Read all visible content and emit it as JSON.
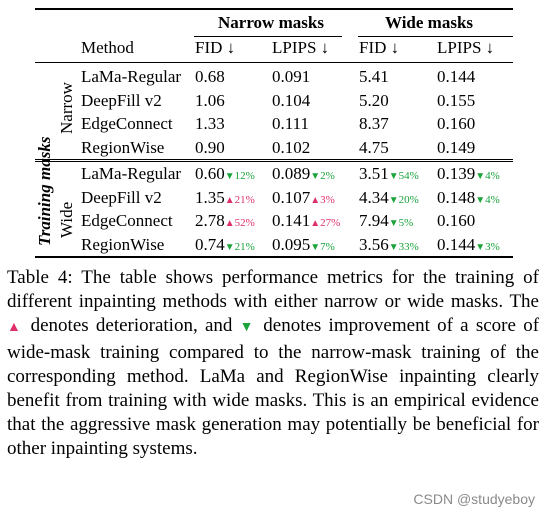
{
  "header": {
    "group_narrow": "Narrow masks",
    "group_wide": "Wide masks",
    "method": "Method",
    "fid": "FID ↓",
    "lpips": "LPIPS ↓"
  },
  "side_labels": {
    "training": "Training masks",
    "narrow": "Narrow",
    "wide": "Wide"
  },
  "narrow_rows": [
    {
      "method": "LaMa-Regular",
      "n_fid": "0.68",
      "n_lpips": "0.091",
      "w_fid": "5.41",
      "w_lpips": "0.144"
    },
    {
      "method": "DeepFill v2",
      "n_fid": "1.06",
      "n_lpips": "0.104",
      "w_fid": "5.20",
      "w_lpips": "0.155"
    },
    {
      "method": "EdgeConnect",
      "n_fid": "1.33",
      "n_lpips": "0.111",
      "w_fid": "8.37",
      "w_lpips": "0.160"
    },
    {
      "method": "RegionWise",
      "n_fid": "0.90",
      "n_lpips": "0.102",
      "w_fid": "4.75",
      "w_lpips": "0.149"
    }
  ],
  "wide_rows": [
    {
      "method": "LaMa-Regular",
      "n_fid": "0.60",
      "n_fid_d": "12%",
      "n_fid_dir": "down",
      "n_lpips": "0.089",
      "n_lpips_d": "2%",
      "n_lpips_dir": "down",
      "w_fid": "3.51",
      "w_fid_d": "54%",
      "w_fid_dir": "down",
      "w_lpips": "0.139",
      "w_lpips_d": "4%",
      "w_lpips_dir": "down"
    },
    {
      "method": "DeepFill v2",
      "n_fid": "1.35",
      "n_fid_d": "21%",
      "n_fid_dir": "up",
      "n_lpips": "0.107",
      "n_lpips_d": "3%",
      "n_lpips_dir": "up",
      "w_fid": "4.34",
      "w_fid_d": "20%",
      "w_fid_dir": "down",
      "w_lpips": "0.148",
      "w_lpips_d": "4%",
      "w_lpips_dir": "down"
    },
    {
      "method": "EdgeConnect",
      "n_fid": "2.78",
      "n_fid_d": "52%",
      "n_fid_dir": "up",
      "n_lpips": "0.141",
      "n_lpips_d": "27%",
      "n_lpips_dir": "up",
      "w_fid": "7.94",
      "w_fid_d": "5%",
      "w_fid_dir": "down",
      "w_lpips": "0.160",
      "w_lpips_d": "",
      "w_lpips_dir": ""
    },
    {
      "method": "RegionWise",
      "n_fid": "0.74",
      "n_fid_d": "21%",
      "n_fid_dir": "down",
      "n_lpips": "0.095",
      "n_lpips_d": "7%",
      "n_lpips_dir": "down",
      "w_fid": "3.56",
      "w_fid_d": "33%",
      "w_fid_dir": "down",
      "w_lpips": "0.144",
      "w_lpips_d": "3%",
      "w_lpips_dir": "down"
    }
  ],
  "caption": {
    "part1": "Table 4: The table shows performance metrics for the training of different inpainting methods with either narrow or wide masks. The",
    "part2": "denotes deterioration, and",
    "part3": "denotes improvement of a score of wide-mask training compared to the narrow-mask training of the corresponding method. LaMa and RegionWise inpainting clearly benefit from training with wide masks. This is an empirical evidence that the aggressive mask generation may potentially be beneficial for other inpainting systems.",
    "up_marker": "▲",
    "down_marker": "▼"
  },
  "watermark": "CSDN @studyeboy",
  "colors": {
    "improvement": "#19a33a",
    "deterioration": "#e0306a"
  }
}
